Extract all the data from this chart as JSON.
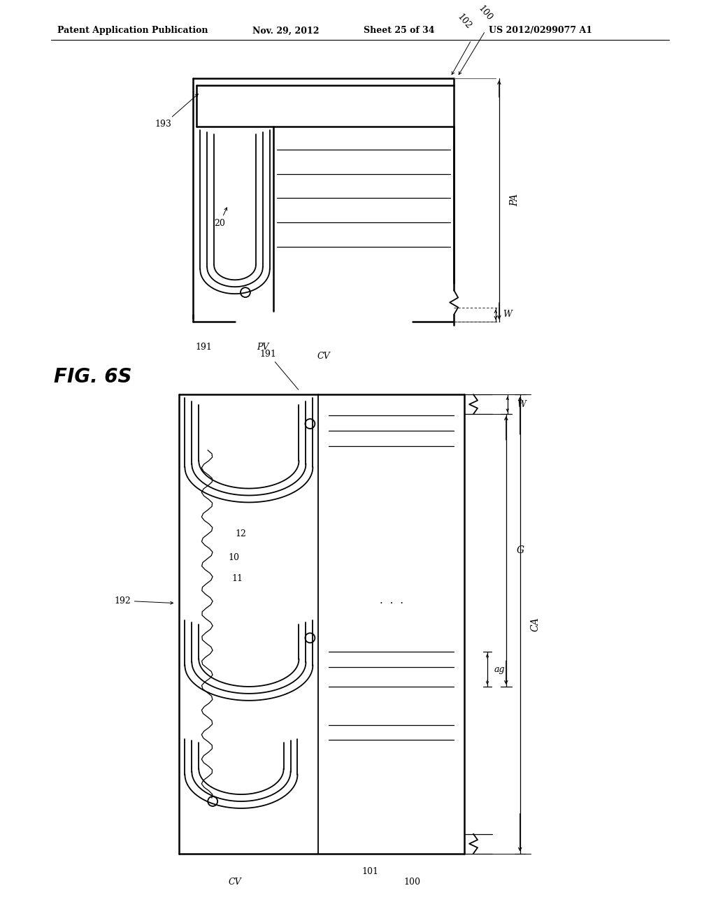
{
  "bg_color": "#ffffff",
  "line_color": "#000000",
  "header_text": "Patent Application Publication",
  "header_date": "Nov. 29, 2012",
  "header_sheet": "Sheet 25 of 34",
  "header_patent": "US 2012/0299077 A1",
  "fig_label": "FIG. 6S"
}
